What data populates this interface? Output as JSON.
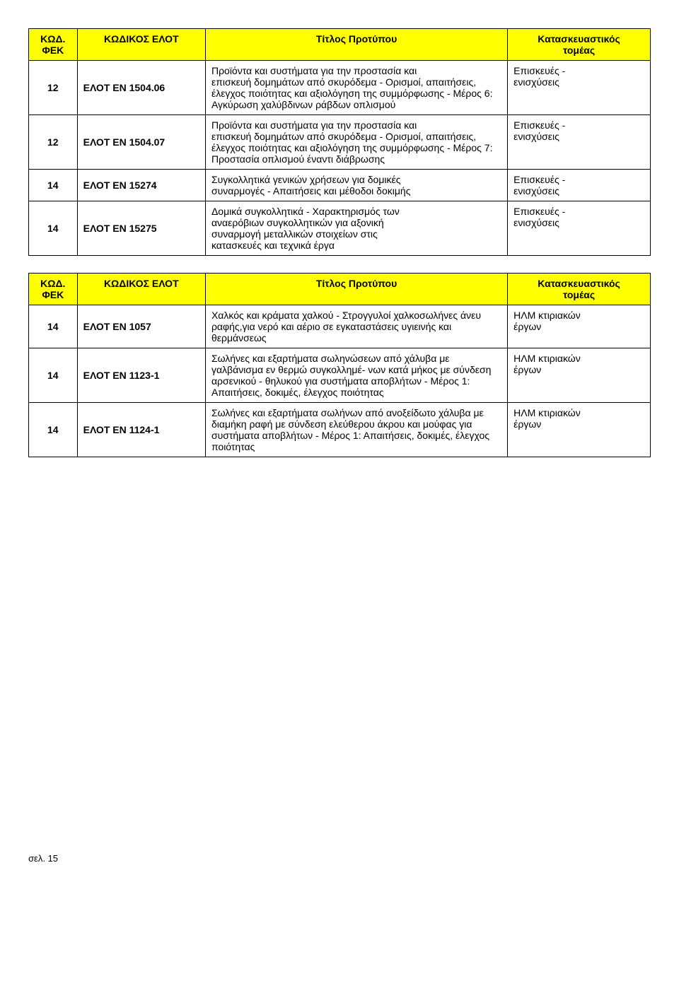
{
  "table1": {
    "header_bg": "#ffff00",
    "columns": [
      "ΚΩΔ.\nΦΕΚ",
      "ΚΩΔΙΚΟΣ ΕΛΟΤ",
      "Τίτλος Προτύπου",
      "Κατασκευαστικός\nτομέας"
    ],
    "rows": [
      {
        "kwd": "12",
        "elot": "ΕΛΟΤ EN 1504.06",
        "title": "Προϊόντα και συστήματα για την προστασία και\nεπισκευή δομημάτων από σκυρόδεμα - Ορισμοί, απαιτήσεις, έλεγχος ποιότητας και αξιολόγηση της συμμόρφωσης - Μέρος 6: Αγκύρωση χαλύβδινων ράβδων οπλισμού",
        "sector": "Επισκευές -\nενισχύσεις"
      },
      {
        "kwd": "12",
        "elot": "ΕΛΟΤ EN 1504.07",
        "title": "Προϊόντα και συστήματα για την προστασία και\nεπισκευή δομημάτων από σκυρόδεμα - Ορισμοί, απαιτήσεις, έλεγχος ποιότητας και αξιολόγηση της συμμόρφωσης - Μέρος 7: Προστασία οπλισμού έναντι διάβρωσης",
        "sector": "Επισκευές -\nενισχύσεις"
      },
      {
        "kwd": "14",
        "elot": "ΕΛΟΤ EN 15274",
        "title": "Συγκολλητικά γενικών χρήσεων για δομικές\nσυναρμογές - Απαιτήσεις και μέθοδοι δοκιμής",
        "sector": "Επισκευές -\nενισχύσεις"
      },
      {
        "kwd": "14",
        "elot": "ΕΛΟΤ EN 15275",
        "title": "Δομικά συγκολλητικά - Χαρακτηρισμός των\nαναερόβιων συγκολλητικών για αξονική\nσυναρμογή μεταλλικών στοιχείων στις\nκατασκευές και τεχνικά έργα",
        "sector": "Επισκευές -\nενισχύσεις"
      }
    ]
  },
  "table2": {
    "header_bg": "#ffff00",
    "columns": [
      "ΚΩΔ.\nΦΕΚ",
      "ΚΩΔΙΚΟΣ ΕΛΟΤ",
      "Τίτλος Προτύπου",
      "Κατασκευαστικός\nτομέας"
    ],
    "rows": [
      {
        "kwd": "14",
        "elot": "ΕΛΟΤ ΕΝ 1057",
        "title": "Χαλκός και κράματα χαλκού - Στρογγυλοί χαλκοσωλήνες άνευ ραφής,για νερό και αέριο σε εγκαταστάσεις υγιεινής και θερμάνσεως",
        "sector": "ΗΛΜ κτιριακών\nέργων"
      },
      {
        "kwd": "14",
        "elot": "ΕΛΟΤ ΕΝ 1123-1",
        "title": "Σωλήνες και εξαρτήματα σωληνώσεων από χάλυβα με γαλβάνισμα εν θερμώ συγκολλημέ- νων κατά μήκος με σύνδεση αρσενικού - θηλυκού για συστήματα αποβλήτων - Μέρος 1: Απαιτήσεις, δοκιμές, έλεγχος ποιότητας",
        "sector": "ΗΛΜ κτιριακών\nέργων"
      },
      {
        "kwd": "14",
        "elot": "ΕΛΟΤ ΕΝ 1124-1",
        "title": "Σωλήνες και εξαρτήματα σωλήνων από ανοξείδωτο χάλυβα με διαμήκη ραφή με σύνδεση ελεύθερου άκρου και μούφας για συστήματα αποβλήτων - Μέρος 1: Απαιτήσεις, δοκιμές, έλεγχος ποιότητας",
        "sector": "ΗΛΜ κτιριακών\nέργων"
      }
    ]
  },
  "footer": "σελ. 15"
}
